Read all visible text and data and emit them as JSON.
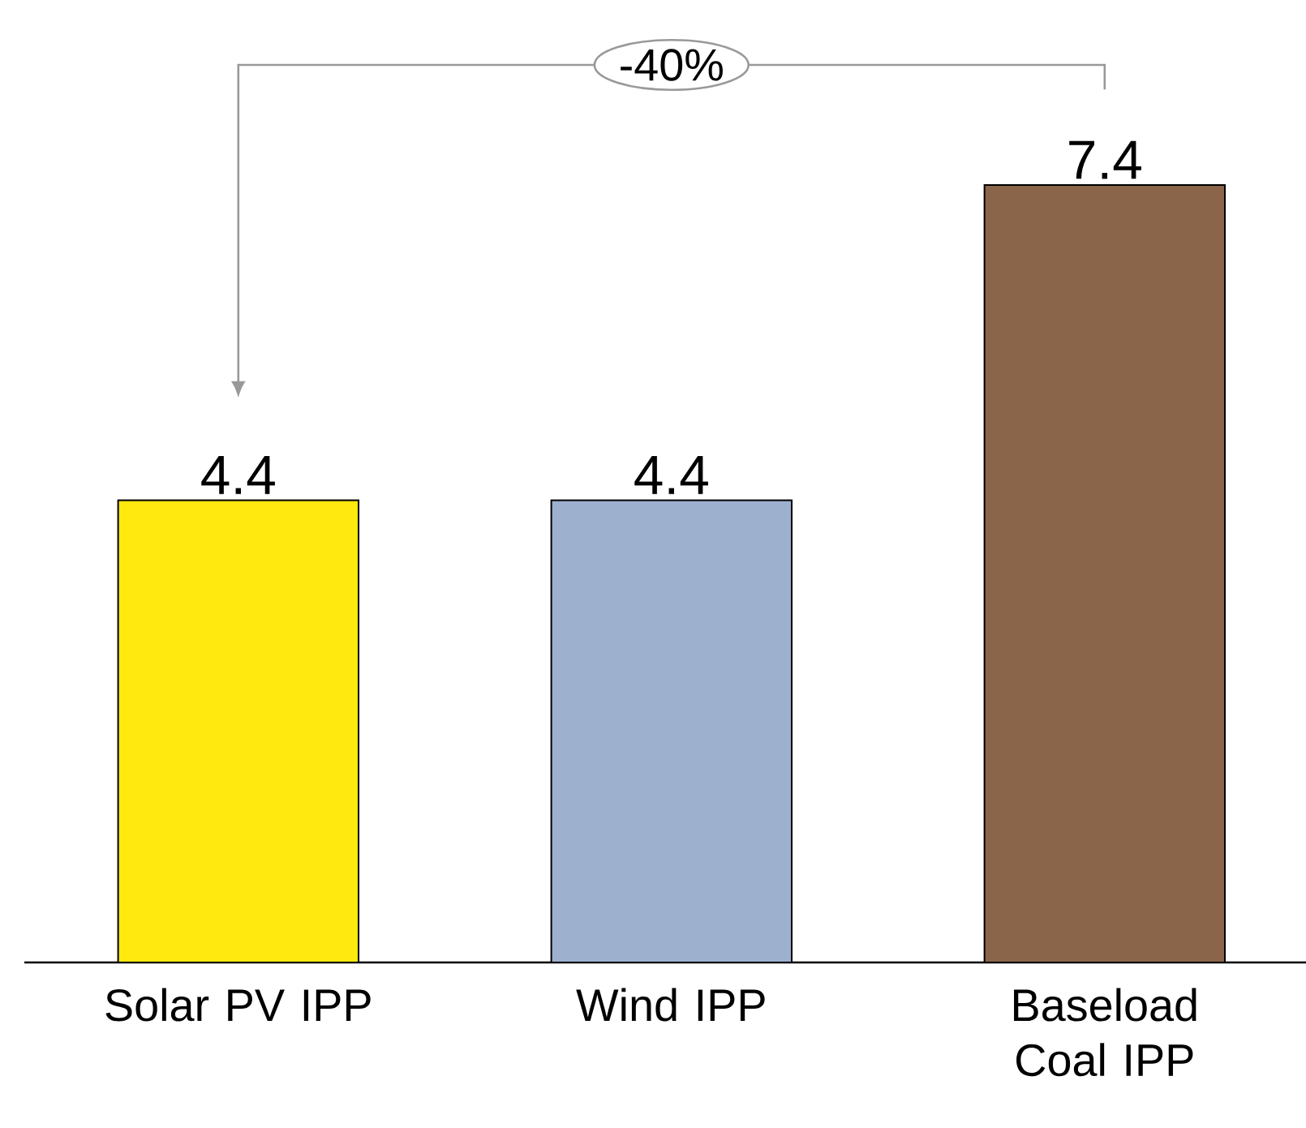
{
  "chart_data": {
    "type": "bar",
    "categories": [
      "Solar PV IPP",
      "Wind IPP",
      "Baseload Coal IPP"
    ],
    "values": [
      4.4,
      4.4,
      7.4
    ],
    "colors": [
      "#ffe90f",
      "#9db0ce",
      "#8b6549"
    ],
    "data_labels": true,
    "annotations": [
      "-40%"
    ]
  }
}
